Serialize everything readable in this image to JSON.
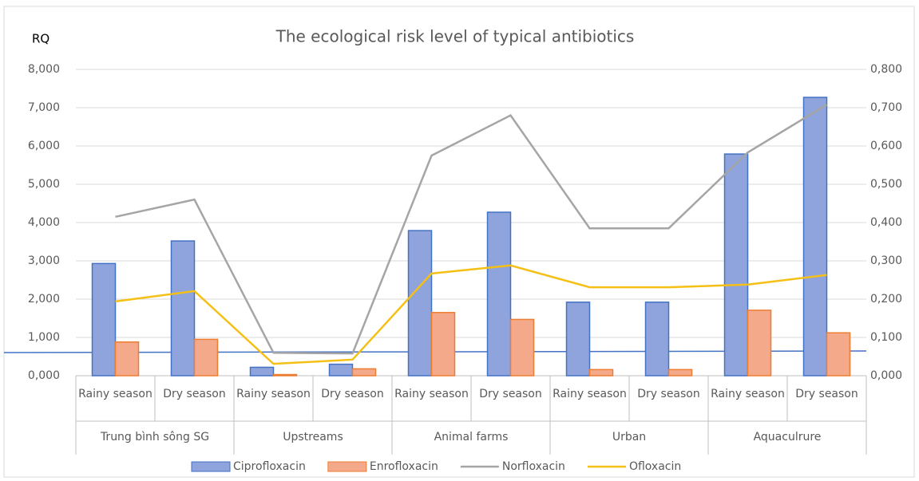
{
  "chart_data": {
    "type": "bar",
    "title": "The ecological risk level of typical antibiotics",
    "y_label": "RQ",
    "categories": [
      "Rainy season",
      "Dry season",
      "Rainy season",
      "Dry season",
      "Rainy season",
      "Dry season",
      "Rainy season",
      "Dry season",
      "Rainy season",
      "Dry season"
    ],
    "groups": [
      "Trung bình sông SG",
      "Upstreams",
      "Animal farms",
      "Urban",
      "Aquaculrure"
    ],
    "series": [
      {
        "name": "Ciprofloxacin",
        "type": "bar",
        "color": "#8fa3dc",
        "values": [
          2.93,
          3.52,
          0.22,
          0.3,
          3.79,
          4.27,
          1.92,
          1.92,
          5.79,
          7.27
        ]
      },
      {
        "name": "Enrofloxacin",
        "type": "bar",
        "color": "#f4a98a",
        "values": [
          0.88,
          0.95,
          0.03,
          0.18,
          1.65,
          1.47,
          0.16,
          0.16,
          1.71,
          1.12
        ]
      },
      {
        "name": "Norfloxacin",
        "type": "line",
        "axis": "y2",
        "color": "#a5a5a5",
        "values": [
          0.415,
          0.46,
          0.06,
          0.058,
          0.575,
          0.68,
          0.385,
          0.385,
          0.583,
          0.708
        ]
      },
      {
        "name": "Ofloxacin",
        "type": "line",
        "axis": "y2",
        "color": "#f5c016",
        "values": [
          0.194,
          0.221,
          0.031,
          0.042,
          0.267,
          0.288,
          0.231,
          0.231,
          0.238,
          0.263
        ]
      }
    ],
    "ylim": [
      0,
      8
    ],
    "yticks": [
      {
        "value": 0,
        "label": "0,000"
      },
      {
        "value": 1,
        "label": "1,000"
      },
      {
        "value": 2,
        "label": "2,000"
      },
      {
        "value": 3,
        "label": "3,000"
      },
      {
        "value": 4,
        "label": "4,000"
      },
      {
        "value": 5,
        "label": "5,000"
      },
      {
        "value": 6,
        "label": "6,000"
      },
      {
        "value": 7,
        "label": "7,000"
      },
      {
        "value": 8,
        "label": "8,000"
      }
    ],
    "y2lim": [
      0,
      0.8
    ],
    "y2ticks": [
      {
        "value": 0,
        "label": "0,000"
      },
      {
        "value": 0.1,
        "label": "0,100"
      },
      {
        "value": 0.2,
        "label": "0,200"
      },
      {
        "value": 0.3,
        "label": "0,300"
      },
      {
        "value": 0.4,
        "label": "0,400"
      },
      {
        "value": 0.5,
        "label": "0,500"
      },
      {
        "value": 0.6,
        "label": "0,600"
      },
      {
        "value": 0.7,
        "label": "0,700"
      },
      {
        "value": 0.8,
        "label": "0,800"
      }
    ],
    "grid": true,
    "legend": "bottom"
  }
}
